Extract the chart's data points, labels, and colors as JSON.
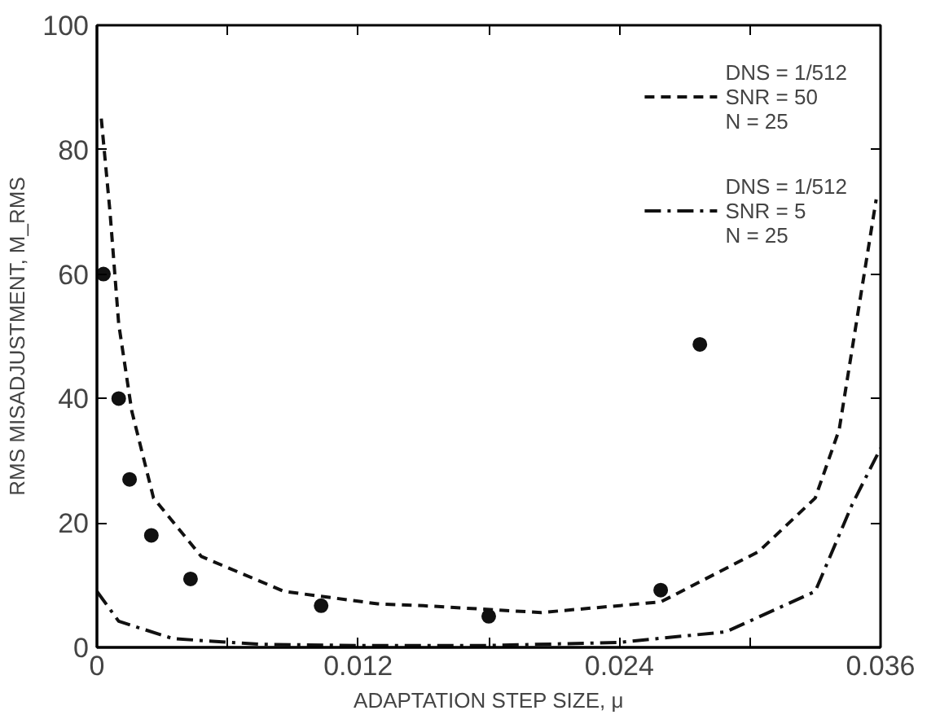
{
  "chart_data": {
    "type": "line",
    "xlabel": "ADAPTATION STEP SIZE, μ",
    "ylabel": "RMS MISADJUSTMENT, M_RMS",
    "xlim": [
      0,
      0.036
    ],
    "ylim": [
      0,
      100
    ],
    "xticks": [
      0,
      {
        "value": 0.006,
        "label": null
      },
      0.012,
      {
        "value": 0.018,
        "label": null
      },
      0.024,
      {
        "value": 0.03,
        "label": null
      },
      0.036
    ],
    "yticks": [
      0,
      20,
      40,
      60,
      80,
      100
    ],
    "grid": false,
    "legend": "top right",
    "marker": "none",
    "series": [
      {
        "name": "DNS = 1/512\nSNR = 50\nN = 25",
        "color": "#111111",
        "line_style": "dashed",
        "x": [
          0.0002,
          0.0006,
          0.001,
          0.0016,
          0.0026,
          0.0048,
          0.0086,
          0.0129,
          0.015,
          0.0204,
          0.0259,
          0.0304,
          0.033,
          0.0341,
          0.0358
        ],
        "values": [
          85,
          70,
          52,
          38,
          24,
          14.6,
          9,
          7,
          6.7,
          5.6,
          7.3,
          15.4,
          24,
          35,
          72
        ]
      },
      {
        "name": "DNS = 1/512\nSNR = 5\nN = 25",
        "color": "#111111",
        "line_style": "dashdot",
        "x": [
          0,
          0.001,
          0.0035,
          0.0075,
          0.012,
          0.018,
          0.024,
          0.0289,
          0.033,
          0.0347,
          0.036
        ],
        "values": [
          9,
          4.2,
          1.4,
          0.5,
          0.3,
          0.3,
          0.8,
          2.5,
          9,
          23,
          32
        ]
      },
      {
        "type": "scatter",
        "color": "#111111",
        "marker": "circle",
        "x": [
          0.0003,
          0.001,
          0.0015,
          0.0025,
          0.0043,
          0.0103,
          0.018,
          0.0259,
          0.0277
        ],
        "values": [
          60,
          40,
          27,
          18,
          11,
          6.7,
          5,
          9.2,
          48.7
        ]
      }
    ]
  }
}
